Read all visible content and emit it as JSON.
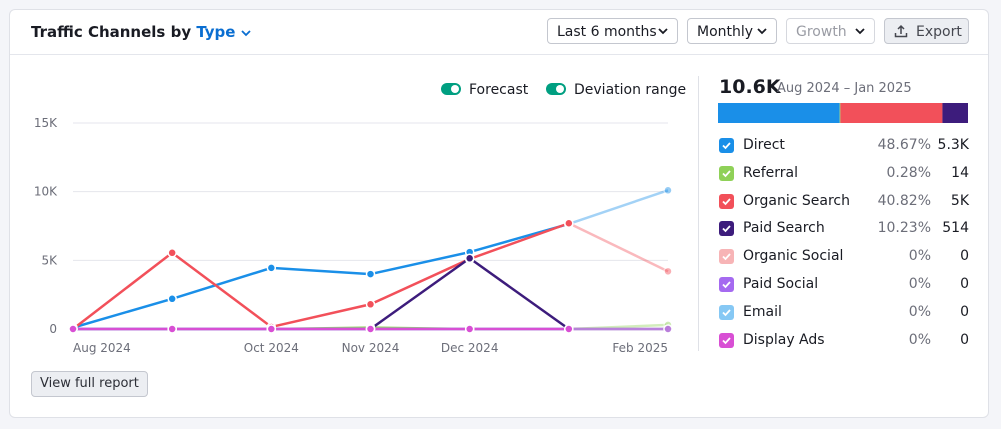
{
  "header": {
    "title": "Traffic Channels by",
    "type_selector": "Type"
  },
  "controls": {
    "period": "Last 6 months",
    "granularity": "Monthly",
    "metric": "Growth",
    "export": "Export"
  },
  "toggles": [
    "Forecast",
    "Deviation range"
  ],
  "chart_data": {
    "type": "line",
    "categories": [
      "Aug 2024",
      null,
      "Oct 2024",
      "Nov 2024",
      "Dec 2024",
      null,
      "Feb 2025"
    ],
    "series": [
      {
        "name": "Direct",
        "color": "#1a8fe8",
        "values": [
          100,
          2200,
          4450,
          4000,
          5600,
          7650,
          10100
        ],
        "share": 48.67,
        "share_label": "48.67%",
        "total": 5300,
        "total_label": "5.3K"
      },
      {
        "name": "Referral",
        "color": "#8fd158",
        "values": [
          0,
          0,
          0,
          100,
          0,
          0,
          300
        ],
        "share": 0.28,
        "share_label": "0.28%",
        "total": 14
      },
      {
        "name": "Organic Search",
        "color": "#f2505a",
        "values": [
          0,
          5550,
          150,
          1800,
          5100,
          7700,
          4200
        ],
        "share": 40.82,
        "share_label": "40.82%",
        "total": 5000,
        "total_label": "5K"
      },
      {
        "name": "Paid Search",
        "color": "#3d1c7c",
        "values": [
          0,
          0,
          0,
          0,
          5150,
          0,
          0
        ],
        "share": 10.23,
        "share_label": "10.23%",
        "total": 514
      },
      {
        "name": "Organic Social",
        "color": "#f7b4b6",
        "values": [
          0,
          0,
          0,
          0,
          0,
          0,
          0
        ],
        "share": 0,
        "share_label": "0%",
        "total": 0
      },
      {
        "name": "Paid Social",
        "color": "#a56af0",
        "values": [
          0,
          0,
          0,
          0,
          0,
          0,
          0
        ],
        "share": 0,
        "share_label": "0%",
        "total": 0
      },
      {
        "name": "Email",
        "color": "#86c8f4",
        "values": [
          0,
          0,
          0,
          0,
          0,
          0,
          0
        ],
        "share": 0,
        "share_label": "0%",
        "total": 0
      },
      {
        "name": "Display Ads",
        "color": "#d84fd4",
        "values": [
          0,
          0,
          0,
          0,
          0,
          0,
          0
        ],
        "share": 0,
        "share_label": "0%",
        "total": 0
      }
    ],
    "ylim": [
      0,
      15000
    ],
    "yticks": [
      0,
      {
        "value": 5000,
        "label": "5K"
      },
      {
        "value": 10000,
        "label": "10K"
      },
      {
        "value": 15000,
        "label": "15K"
      }
    ],
    "grid": true
  },
  "summary": {
    "total": "10.6K",
    "period": "Aug 2024 – Jan 2025"
  },
  "footer": {
    "button": "View full report"
  }
}
